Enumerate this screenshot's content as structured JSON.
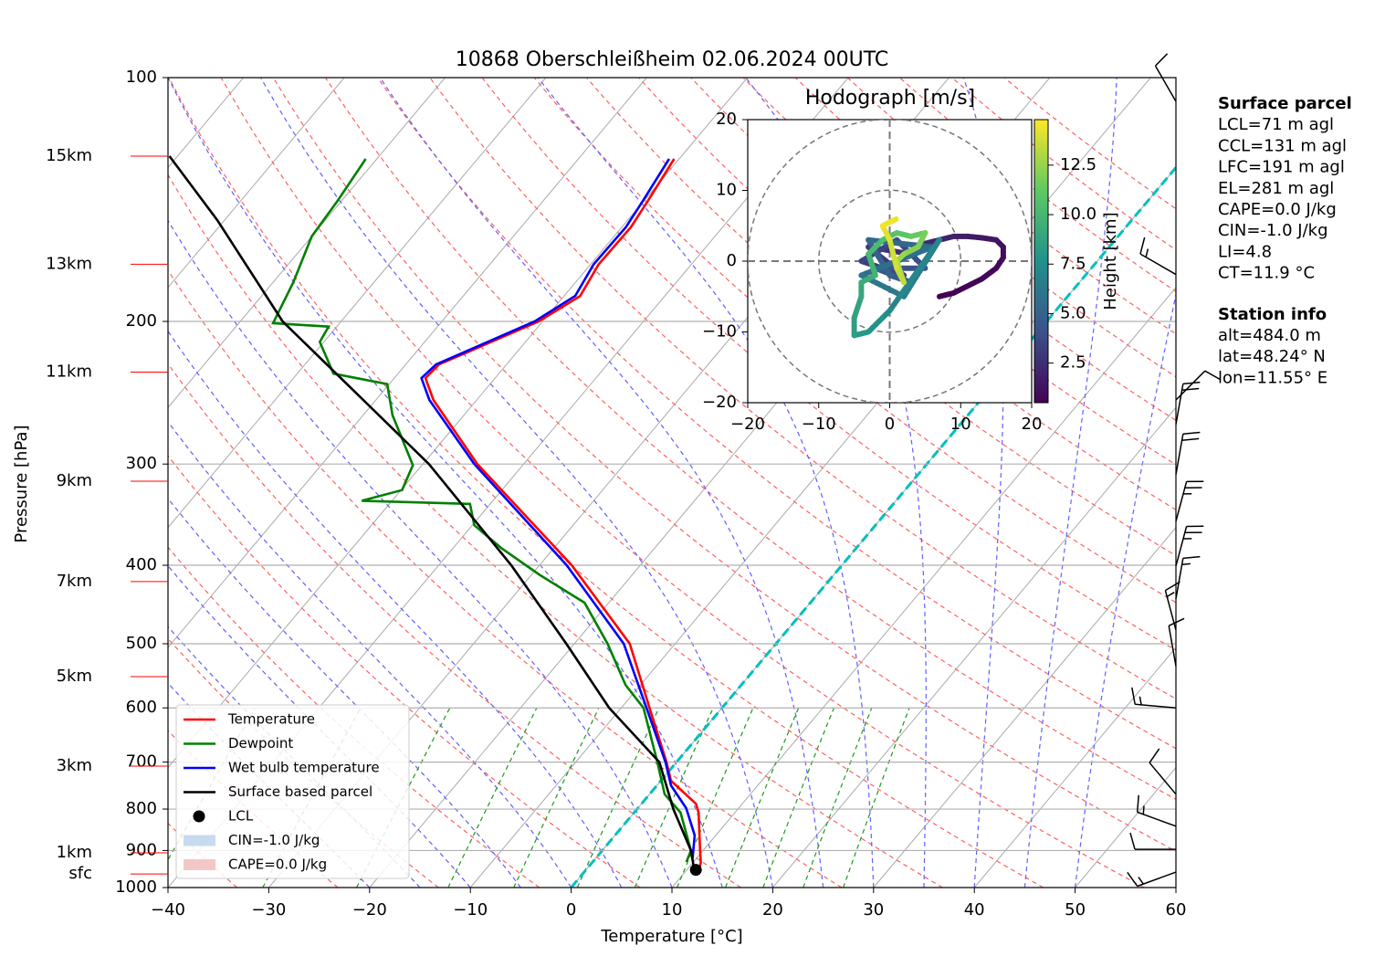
{
  "chart_data": [
    {
      "type": "skewt",
      "title": "10868 Oberschleißheim 02.06.2024 00UTC",
      "x_label": "Temperature [°C]",
      "y_label": "Pressure [hPa]",
      "xlim": [
        -40,
        60
      ],
      "xticks": [
        {
          "value": -40,
          "label": "−40"
        },
        {
          "value": -30,
          "label": "−30"
        },
        {
          "value": -20,
          "label": "−20"
        },
        {
          "value": -10,
          "label": "−10"
        },
        0,
        10,
        20,
        30,
        40,
        50,
        60
      ],
      "ylim": [
        1000,
        100
      ],
      "yticks": [
        1000,
        900,
        800,
        700,
        600,
        500,
        400,
        300,
        200,
        100
      ],
      "log_y": true,
      "grid": true,
      "height_labels": [
        {
          "value": 125,
          "label": "15km"
        },
        {
          "value": 170,
          "label": "13km"
        },
        {
          "value": 231,
          "label": "11km"
        },
        {
          "value": 315,
          "label": "9km"
        },
        {
          "value": 419,
          "label": "7km"
        },
        {
          "value": 549,
          "label": "5km"
        },
        {
          "value": 708,
          "label": "3km"
        },
        {
          "value": 906,
          "label": "1km"
        },
        {
          "value": 962,
          "label": "sfc"
        }
      ],
      "series": [
        {
          "name": "Temperature",
          "color": "#ff0000",
          "pressure": [
            950,
            932,
            900,
            808,
            788,
            738,
            700,
            600,
            500,
            400,
            300,
            250,
            235,
            226,
            200,
            186,
            170,
            153,
            142,
            126
          ],
          "temperature": [
            11.2,
            10.8,
            9.7,
            6.4,
            5.4,
            1.0,
            -1.0,
            -7.2,
            -14.5,
            -26.8,
            -44.6,
            -54.3,
            -56.9,
            -56.7,
            -50.4,
            -48.4,
            -49.2,
            -49.1,
            -49.6,
            -50.5
          ]
        },
        {
          "name": "Dewpoint",
          "color": "#008000",
          "pressure": [
            930,
            900,
            808,
            767,
            700,
            600,
            562,
            500,
            445,
            411,
            381,
            357,
            336,
            333,
            323,
            301,
            261,
            239,
            232,
            212,
            203,
            201,
            179,
            157,
            142,
            126
          ],
          "temperature": [
            9.3,
            8.8,
            4.6,
            1.5,
            -1.9,
            -7.8,
            -11.5,
            -16.7,
            -22.4,
            -29.2,
            -35.2,
            -39.8,
            -42.0,
            -53.0,
            -49.9,
            -50.9,
            -57.1,
            -60.2,
            -66.4,
            -70.4,
            -70.8,
            -76.6,
            -78.0,
            -80.0,
            -80.4,
            -81.1
          ]
        },
        {
          "name": "Wet bulb temperature",
          "color": "#0000ff",
          "pressure": [
            920,
            862,
            798,
            748,
            700,
            600,
            500,
            400,
            300,
            250,
            235,
            226,
            200,
            186,
            170,
            153,
            142,
            126
          ],
          "temperature": [
            9.6,
            7.9,
            4.8,
            1.4,
            -1.1,
            -7.5,
            -15.1,
            -27.3,
            -44.9,
            -54.7,
            -57.3,
            -57.0,
            -50.8,
            -48.9,
            -49.7,
            -49.6,
            -50.1,
            -51.0
          ]
        },
        {
          "name": "Surface based parcel",
          "color": "#000000",
          "pressure": [
            955,
            900,
            800,
            700,
            600,
            500,
            400,
            300,
            200,
            150,
            125
          ],
          "temperature": [
            10.9,
            8.8,
            3.6,
            -1.7,
            -11.2,
            -20.8,
            -32.8,
            -49.4,
            -75.8,
            -90.7,
            -100.8
          ]
        }
      ],
      "lcl": {
        "name": "LCL",
        "color": "#000000",
        "pressure": 951,
        "temperature": 10.9
      },
      "cin": {
        "name": "CIN=-1.0 J/kg",
        "color": "#c6dbef"
      },
      "cape": {
        "name": "CAPE=0.0 J/kg",
        "color": "#f4c7c7"
      },
      "wind": {
        "pressure": [
          957,
          897,
          840,
          767,
          600,
          533,
          481,
          440,
          401,
          353,
          309,
          268,
          250,
          175,
          107
        ],
        "speed": [
          15,
          10,
          15,
          10,
          15,
          10,
          15,
          15,
          25,
          25,
          20,
          20,
          10,
          15,
          10
        ],
        "direction": [
          250,
          270,
          290,
          320,
          275,
          350,
          345,
          10,
          15,
          15,
          10,
          10,
          45,
          300,
          330
        ]
      }
    },
    {
      "type": "hodograph",
      "title": "Hodograph [m/s]",
      "xlim": [
        -20,
        20
      ],
      "ylim": [
        -20,
        20
      ],
      "xticks": [
        {
          "value": -20,
          "label": "−20"
        },
        {
          "value": -10,
          "label": "−10"
        },
        0,
        10,
        20
      ],
      "yticks": [
        {
          "value": -20,
          "label": "−20"
        },
        {
          "value": -10,
          "label": "−10"
        },
        0,
        10,
        20
      ],
      "colorbar": {
        "label": "Height [km]",
        "lim": [
          0.5,
          14.8
        ],
        "ticks": [
          2.5,
          {
            "value": 5,
            "label": "5.0"
          },
          7.5,
          {
            "value": 10,
            "label": "10.0"
          },
          12.5
        ]
      },
      "u": [
        7,
        9,
        11,
        13,
        15,
        16,
        16,
        15,
        13,
        11,
        9,
        7,
        5,
        3,
        -3,
        2,
        -4,
        1,
        5,
        -2,
        3,
        0,
        -3,
        6,
        -4,
        2,
        7,
        0,
        -1,
        -3,
        -5,
        -5,
        -4,
        -4,
        -2,
        -3,
        -1,
        1,
        3,
        5,
        4,
        2,
        1,
        2,
        1,
        0,
        -1,
        1
      ],
      "v": [
        -5,
        -4.5,
        -3.5,
        -2.5,
        -1,
        0.5,
        2,
        3,
        3.3,
        3.5,
        3.5,
        3,
        2.5,
        1,
        2,
        -2,
        0,
        3,
        -1,
        -1,
        -3,
        -2,
        3,
        2,
        -2,
        -5,
        3,
        -7,
        -8,
        -10,
        -10.5,
        -8,
        -5,
        -3,
        -2,
        1,
        3,
        4,
        3.5,
        4,
        2,
        1,
        0,
        -3,
        -1,
        3,
        5,
        6
      ],
      "height": [
        0.5,
        0.6,
        0.7,
        0.8,
        0.9,
        1.0,
        1.2,
        1.4,
        1.6,
        1.8,
        2.0,
        2.2,
        2.4,
        2.6,
        2.9,
        3.2,
        3.5,
        3.8,
        4.1,
        4.4,
        4.7,
        5.0,
        5.4,
        5.8,
        6.2,
        6.6,
        7.0,
        7.4,
        7.8,
        8.1,
        8.4,
        8.7,
        9.0,
        9.4,
        9.8,
        10.2,
        10.6,
        11.0,
        11.4,
        11.8,
        12.2,
        12.6,
        13.0,
        13.4,
        13.8,
        14.2,
        14.5,
        14.8
      ]
    }
  ],
  "info_panels": [
    {
      "title": "Surface parcel",
      "lines": [
        "LCL=71 m agl",
        "CCL=131 m agl",
        "LFC=191 m agl",
        "EL=281 m agl",
        "CAPE=0.0 J/kg",
        "CIN=-1.0 J/kg",
        "LI=4.8",
        "CT=11.9 °C"
      ]
    },
    {
      "title": "Station info",
      "lines": [
        "alt=484.0 m",
        "lat=48.24° N",
        "lon=11.55° E"
      ]
    }
  ]
}
